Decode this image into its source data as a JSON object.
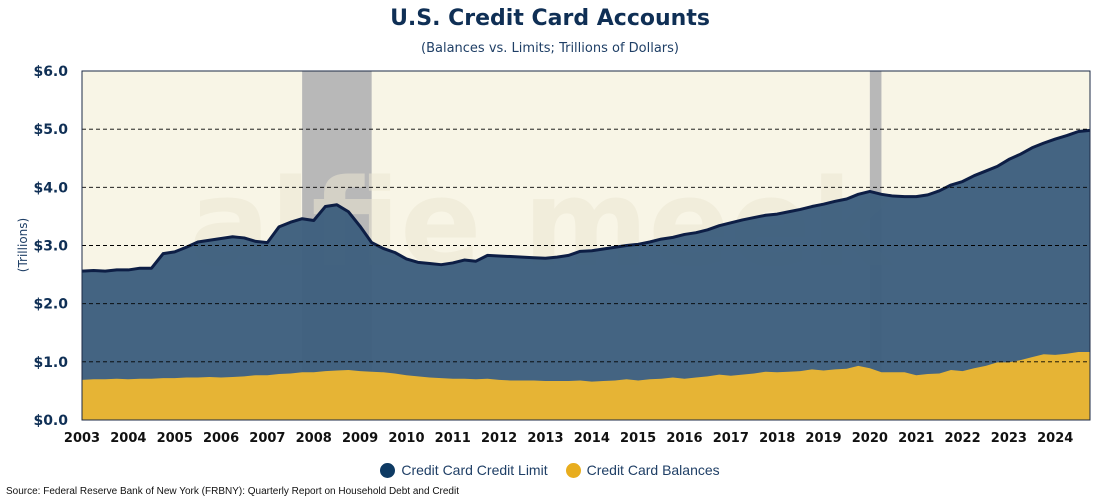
{
  "chart_data": {
    "type": "area",
    "title": "U.S. Credit Card Accounts",
    "subtitle": "(Balances vs. Limits; Trillions of Dollars)",
    "ylabel": "(Trillions)",
    "xlabel": "",
    "ylim": [
      0,
      6
    ],
    "yticks": [
      "$0.0",
      "$1.0",
      "$2.0",
      "$3.0",
      "$4.0",
      "$5.0",
      "$6.0"
    ],
    "xticks": [
      "2003",
      "2004",
      "2005",
      "2006",
      "2007",
      "2008",
      "2009",
      "2010",
      "2011",
      "2012",
      "2013",
      "2014",
      "2015",
      "2016",
      "2017",
      "2018",
      "2019",
      "2020",
      "2021",
      "2022",
      "2023",
      "2024"
    ],
    "xlim": [
      2003.0,
      2024.75
    ],
    "grid": "horizontal dashed",
    "legend_position": "bottom",
    "recession_bands": [
      [
        2007.75,
        2009.25
      ],
      [
        2020.0,
        2020.25
      ]
    ],
    "series": [
      {
        "name": "Credit Card Credit Limit",
        "color": "#3e5f7e",
        "line_color": "#0d1e45",
        "points": [
          [
            2003.0,
            2.56
          ],
          [
            2003.25,
            2.57
          ],
          [
            2003.5,
            2.56
          ],
          [
            2003.75,
            2.58
          ],
          [
            2004.0,
            2.58
          ],
          [
            2004.25,
            2.61
          ],
          [
            2004.5,
            2.61
          ],
          [
            2004.75,
            2.86
          ],
          [
            2005.0,
            2.89
          ],
          [
            2005.25,
            2.97
          ],
          [
            2005.5,
            3.06
          ],
          [
            2005.75,
            3.09
          ],
          [
            2006.0,
            3.12
          ],
          [
            2006.25,
            3.15
          ],
          [
            2006.5,
            3.13
          ],
          [
            2006.75,
            3.07
          ],
          [
            2007.0,
            3.05
          ],
          [
            2007.25,
            3.32
          ],
          [
            2007.5,
            3.4
          ],
          [
            2007.75,
            3.46
          ],
          [
            2008.0,
            3.43
          ],
          [
            2008.25,
            3.67
          ],
          [
            2008.5,
            3.7
          ],
          [
            2008.75,
            3.58
          ],
          [
            2009.0,
            3.33
          ],
          [
            2009.25,
            3.05
          ],
          [
            2009.5,
            2.95
          ],
          [
            2009.75,
            2.88
          ],
          [
            2010.0,
            2.77
          ],
          [
            2010.25,
            2.71
          ],
          [
            2010.5,
            2.69
          ],
          [
            2010.75,
            2.67
          ],
          [
            2011.0,
            2.7
          ],
          [
            2011.25,
            2.75
          ],
          [
            2011.5,
            2.73
          ],
          [
            2011.75,
            2.83
          ],
          [
            2012.0,
            2.82
          ],
          [
            2012.25,
            2.81
          ],
          [
            2012.5,
            2.8
          ],
          [
            2012.75,
            2.79
          ],
          [
            2013.0,
            2.78
          ],
          [
            2013.25,
            2.8
          ],
          [
            2013.5,
            2.83
          ],
          [
            2013.75,
            2.9
          ],
          [
            2014.0,
            2.91
          ],
          [
            2014.25,
            2.94
          ],
          [
            2014.5,
            2.97
          ],
          [
            2014.75,
            3.0
          ],
          [
            2015.0,
            3.02
          ],
          [
            2015.25,
            3.06
          ],
          [
            2015.5,
            3.11
          ],
          [
            2015.75,
            3.14
          ],
          [
            2016.0,
            3.19
          ],
          [
            2016.25,
            3.22
          ],
          [
            2016.5,
            3.27
          ],
          [
            2016.75,
            3.34
          ],
          [
            2017.0,
            3.39
          ],
          [
            2017.25,
            3.44
          ],
          [
            2017.5,
            3.48
          ],
          [
            2017.75,
            3.52
          ],
          [
            2018.0,
            3.54
          ],
          [
            2018.25,
            3.58
          ],
          [
            2018.5,
            3.62
          ],
          [
            2018.75,
            3.67
          ],
          [
            2019.0,
            3.71
          ],
          [
            2019.25,
            3.76
          ],
          [
            2019.5,
            3.8
          ],
          [
            2019.75,
            3.88
          ],
          [
            2020.0,
            3.93
          ],
          [
            2020.25,
            3.88
          ],
          [
            2020.5,
            3.85
          ],
          [
            2020.75,
            3.84
          ],
          [
            2021.0,
            3.84
          ],
          [
            2021.25,
            3.87
          ],
          [
            2021.5,
            3.94
          ],
          [
            2021.75,
            4.04
          ],
          [
            2022.0,
            4.1
          ],
          [
            2022.25,
            4.2
          ],
          [
            2022.5,
            4.28
          ],
          [
            2022.75,
            4.36
          ],
          [
            2023.0,
            4.48
          ],
          [
            2023.25,
            4.57
          ],
          [
            2023.5,
            4.68
          ],
          [
            2023.75,
            4.76
          ],
          [
            2024.0,
            4.83
          ],
          [
            2024.25,
            4.89
          ],
          [
            2024.5,
            4.96
          ],
          [
            2024.75,
            4.98
          ]
        ]
      },
      {
        "name": "Credit Card Balances",
        "color": "#ebb733",
        "line_color": "#ebb733",
        "points": [
          [
            2003.0,
            0.69
          ],
          [
            2003.25,
            0.7
          ],
          [
            2003.5,
            0.7
          ],
          [
            2003.75,
            0.71
          ],
          [
            2004.0,
            0.7
          ],
          [
            2004.25,
            0.71
          ],
          [
            2004.5,
            0.71
          ],
          [
            2004.75,
            0.72
          ],
          [
            2005.0,
            0.72
          ],
          [
            2005.25,
            0.73
          ],
          [
            2005.5,
            0.73
          ],
          [
            2005.75,
            0.74
          ],
          [
            2006.0,
            0.73
          ],
          [
            2006.25,
            0.74
          ],
          [
            2006.5,
            0.75
          ],
          [
            2006.75,
            0.77
          ],
          [
            2007.0,
            0.77
          ],
          [
            2007.25,
            0.79
          ],
          [
            2007.5,
            0.8
          ],
          [
            2007.75,
            0.82
          ],
          [
            2008.0,
            0.82
          ],
          [
            2008.25,
            0.84
          ],
          [
            2008.5,
            0.85
          ],
          [
            2008.75,
            0.86
          ],
          [
            2009.0,
            0.84
          ],
          [
            2009.25,
            0.83
          ],
          [
            2009.5,
            0.82
          ],
          [
            2009.75,
            0.8
          ],
          [
            2010.0,
            0.77
          ],
          [
            2010.25,
            0.75
          ],
          [
            2010.5,
            0.73
          ],
          [
            2010.75,
            0.72
          ],
          [
            2011.0,
            0.71
          ],
          [
            2011.25,
            0.71
          ],
          [
            2011.5,
            0.7
          ],
          [
            2011.75,
            0.71
          ],
          [
            2012.0,
            0.69
          ],
          [
            2012.25,
            0.68
          ],
          [
            2012.5,
            0.68
          ],
          [
            2012.75,
            0.68
          ],
          [
            2013.0,
            0.67
          ],
          [
            2013.25,
            0.67
          ],
          [
            2013.5,
            0.67
          ],
          [
            2013.75,
            0.68
          ],
          [
            2014.0,
            0.66
          ],
          [
            2014.25,
            0.67
          ],
          [
            2014.5,
            0.68
          ],
          [
            2014.75,
            0.7
          ],
          [
            2015.0,
            0.68
          ],
          [
            2015.25,
            0.7
          ],
          [
            2015.5,
            0.71
          ],
          [
            2015.75,
            0.73
          ],
          [
            2016.0,
            0.71
          ],
          [
            2016.25,
            0.73
          ],
          [
            2016.5,
            0.75
          ],
          [
            2016.75,
            0.78
          ],
          [
            2017.0,
            0.76
          ],
          [
            2017.25,
            0.78
          ],
          [
            2017.5,
            0.8
          ],
          [
            2017.75,
            0.83
          ],
          [
            2018.0,
            0.82
          ],
          [
            2018.25,
            0.83
          ],
          [
            2018.5,
            0.84
          ],
          [
            2018.75,
            0.87
          ],
          [
            2019.0,
            0.85
          ],
          [
            2019.25,
            0.87
          ],
          [
            2019.5,
            0.88
          ],
          [
            2019.75,
            0.93
          ],
          [
            2020.0,
            0.89
          ],
          [
            2020.25,
            0.82
          ],
          [
            2020.5,
            0.82
          ],
          [
            2020.75,
            0.82
          ],
          [
            2021.0,
            0.77
          ],
          [
            2021.25,
            0.79
          ],
          [
            2021.5,
            0.8
          ],
          [
            2021.75,
            0.86
          ],
          [
            2022.0,
            0.84
          ],
          [
            2022.25,
            0.89
          ],
          [
            2022.5,
            0.93
          ],
          [
            2022.75,
            0.99
          ],
          [
            2023.0,
            0.99
          ],
          [
            2023.25,
            1.03
          ],
          [
            2023.5,
            1.08
          ],
          [
            2023.75,
            1.13
          ],
          [
            2024.0,
            1.12
          ],
          [
            2024.25,
            1.14
          ],
          [
            2024.5,
            1.17
          ],
          [
            2024.75,
            1.17
          ]
        ]
      }
    ]
  },
  "source_text": "Source: Federal Reserve Bank of New York (FRBNY): Quarterly Report on Household Debt and Credit",
  "watermark_text": "alfie meek",
  "colors": {
    "plot_background": "#f8f5e6",
    "recession_band": "#b8b8b8",
    "grid": "#000000",
    "axis_text": "#0f2f55",
    "watermark": "#ece7d3"
  }
}
